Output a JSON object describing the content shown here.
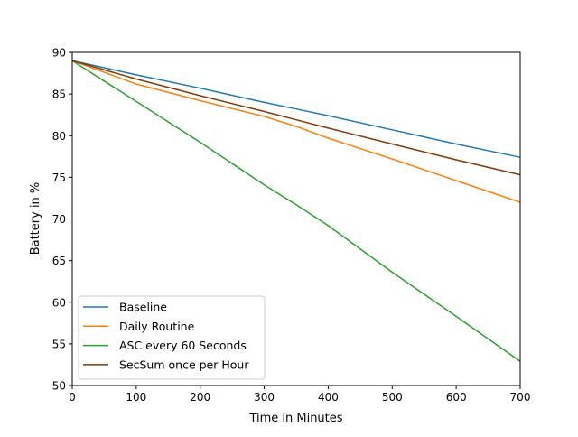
{
  "chart_data": {
    "type": "line",
    "title": "",
    "xlabel": "Time in Minutes",
    "ylabel": "Battery in %",
    "xlim": [
      0,
      700
    ],
    "ylim": [
      50,
      90
    ],
    "xticks": [
      0,
      100,
      200,
      300,
      400,
      500,
      600,
      700
    ],
    "yticks": [
      50,
      55,
      60,
      65,
      70,
      75,
      80,
      85,
      90
    ],
    "grid": false,
    "legend_position": "lower left",
    "x": [
      0,
      100,
      200,
      300,
      350,
      400,
      500,
      600,
      700
    ],
    "series": [
      {
        "name": "Baseline",
        "color": "#1f77b4",
        "values": [
          89.0,
          87.3,
          85.7,
          84.0,
          83.2,
          82.4,
          80.7,
          79.0,
          77.4
        ]
      },
      {
        "name": "Daily Routine",
        "color": "#ff7f0e",
        "values": [
          89.0,
          86.2,
          84.2,
          82.3,
          81.1,
          79.7,
          77.2,
          74.6,
          72.0
        ]
      },
      {
        "name": "ASC every 60 Seconds",
        "color": "#2ca02c",
        "values": [
          89.0,
          84.1,
          79.2,
          74.1,
          71.7,
          69.2,
          63.6,
          58.3,
          52.9
        ]
      },
      {
        "name": "SecSum once per Hour",
        "color": "#7f3b08",
        "values": [
          89.0,
          86.8,
          84.8,
          82.9,
          81.9,
          80.9,
          79.0,
          77.1,
          75.3
        ]
      }
    ]
  }
}
